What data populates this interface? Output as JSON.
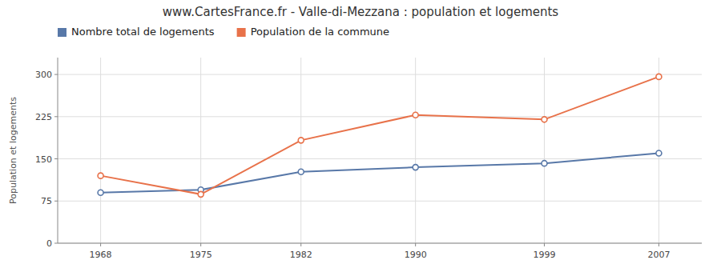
{
  "chart_data": {
    "type": "line",
    "title": "www.CartesFrance.fr - Valle-di-Mezzana : population et logements",
    "y_label": "Population et logements",
    "x": [
      1968,
      1975,
      1982,
      1990,
      1999,
      2007
    ],
    "xlim": [
      1965,
      2010
    ],
    "xticks": [
      1968,
      1975,
      1982,
      1990,
      1999,
      2007
    ],
    "ylim": [
      0,
      330
    ],
    "yticks": [
      0,
      75,
      150,
      225,
      300
    ],
    "grid": true,
    "legend": "top",
    "marker": "circle",
    "series": [
      {
        "name": "Nombre total de logements",
        "color": "#5878a8",
        "values": [
          90,
          95,
          127,
          135,
          142,
          160
        ]
      },
      {
        "name": "Population de la commune",
        "color": "#e8724a",
        "values": [
          120,
          87,
          183,
          228,
          220,
          296
        ]
      }
    ]
  }
}
